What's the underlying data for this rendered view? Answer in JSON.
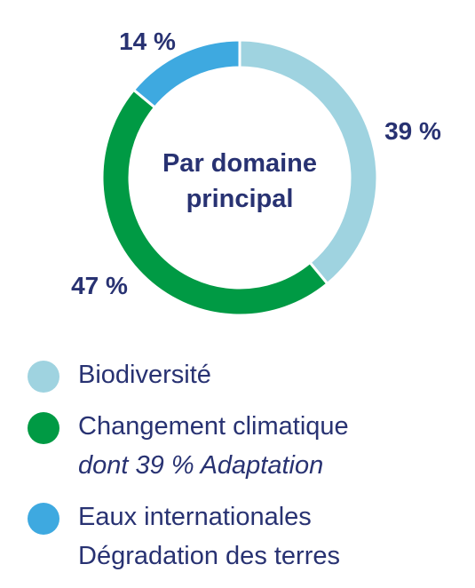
{
  "chart_data": {
    "type": "pie",
    "title": "Par domaine principal",
    "title_lines": [
      "Par domaine",
      "principal"
    ],
    "slices": [
      {
        "label": "Biodiversité",
        "value": 39,
        "value_label": "39 %",
        "color": "#9fd3e0"
      },
      {
        "label": "Changement climatique",
        "value": 47,
        "value_label": "47 %",
        "color": "#009a44"
      },
      {
        "label": "Eaux internationales / Dégradation des terres",
        "value": 14,
        "value_label": "14 %",
        "color": "#3ea9e0"
      }
    ]
  },
  "legend": [
    {
      "color": "#9fd3e0",
      "lines": [
        "Biodiversité"
      ],
      "note": ""
    },
    {
      "color": "#009a44",
      "lines": [
        "Changement climatique"
      ],
      "note": "dont 39 % Adaptation"
    },
    {
      "color": "#3ea9e0",
      "lines": [
        "Eaux internationales",
        "Dégradation des terres"
      ],
      "note": ""
    }
  ]
}
